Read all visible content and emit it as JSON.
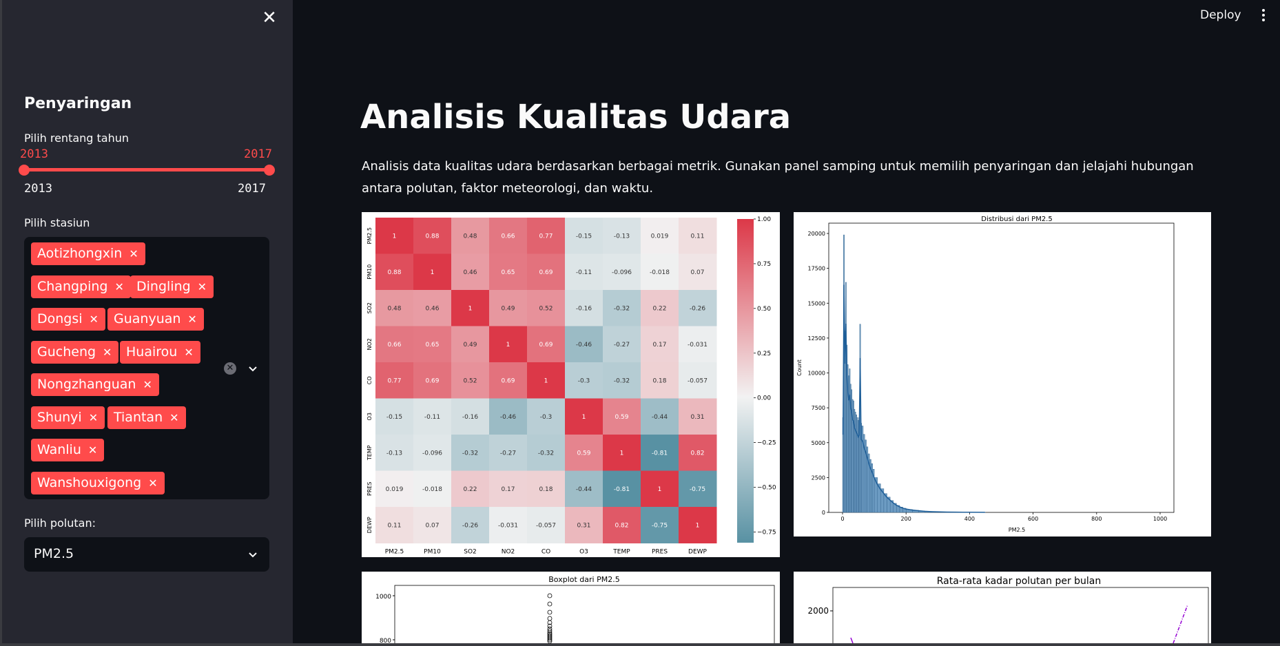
{
  "sidebar": {
    "title": "Penyaringan",
    "year_label": "Pilih rentang tahun",
    "year_start": "2013",
    "year_end": "2017",
    "year_min": "2013",
    "year_max": "2017",
    "station_label": "Pilih stasiun",
    "stations": [
      "Aotizhongxin",
      "Changping",
      "Dingling",
      "Dongsi",
      "Guanyuan",
      "Gucheng",
      "Huairou",
      "Nongzhanguan",
      "Shunyi",
      "Tiantan",
      "Wanliu",
      "Wanshouxigong"
    ],
    "pollutant_label": "Pilih polutan:",
    "pollutant_value": "PM2.5"
  },
  "header": {
    "deploy_label": "Deploy"
  },
  "main": {
    "title": "Analisis Kualitas Udara",
    "description": "Analisis data kualitas udara berdasarkan berbagai metrik. Gunakan panel samping untuk memilih penyaringan dan jelajahi hubungan antara polutan, faktor meteorologi, dan waktu."
  },
  "colors": {
    "accent": "#ff4b4b",
    "background": "#0e1117",
    "sidebar": "#262730"
  },
  "chart_data": [
    {
      "type": "heatmap",
      "labels": [
        "PM2.5",
        "PM10",
        "SO2",
        "NO2",
        "CO",
        "O3",
        "TEMP",
        "PRES",
        "DEWP"
      ],
      "matrix": [
        [
          "1",
          "0.88",
          "0.48",
          "0.66",
          "0.77",
          "-0.15",
          "-0.13",
          "0.019",
          "0.11"
        ],
        [
          "0.88",
          "1",
          "0.46",
          "0.65",
          "0.69",
          "-0.11",
          "-0.096",
          "-0.018",
          "0.07"
        ],
        [
          "0.48",
          "0.46",
          "1",
          "0.49",
          "0.52",
          "-0.16",
          "-0.32",
          "0.22",
          "-0.26"
        ],
        [
          "0.66",
          "0.65",
          "0.49",
          "1",
          "0.69",
          "-0.46",
          "-0.27",
          "0.17",
          "-0.031"
        ],
        [
          "0.77",
          "0.69",
          "0.52",
          "0.69",
          "1",
          "-0.3",
          "-0.32",
          "0.18",
          "-0.057"
        ],
        [
          "-0.15",
          "-0.11",
          "-0.16",
          "-0.46",
          "-0.3",
          "1",
          "0.59",
          "-0.44",
          "0.31"
        ],
        [
          "-0.13",
          "-0.096",
          "-0.32",
          "-0.27",
          "-0.32",
          "0.59",
          "1",
          "-0.81",
          "0.82"
        ],
        [
          "0.019",
          "-0.018",
          "0.22",
          "0.17",
          "0.18",
          "-0.44",
          "-0.81",
          "1",
          "-0.75"
        ],
        [
          "0.11",
          "0.07",
          "-0.26",
          "-0.031",
          "-0.057",
          "0.31",
          "0.82",
          "-0.75",
          "1"
        ]
      ],
      "colorbar_ticks": [
        "1.00",
        "0.75",
        "0.50",
        "0.25",
        "0.00",
        "−0.25",
        "−0.50",
        "−0.75"
      ],
      "vmin": -0.81,
      "vmax": 1
    },
    {
      "type": "bar",
      "title": "Distribusi dari PM2.5",
      "xlabel": "PM2.5",
      "ylabel": "Count",
      "xticks": [
        "0",
        "200",
        "400",
        "600",
        "800",
        "1000"
      ],
      "yticks": [
        "0",
        "2500",
        "5000",
        "7500",
        "10000",
        "12500",
        "15000",
        "17500",
        "20000"
      ],
      "xlim": [
        0,
        1000
      ],
      "ylim": [
        0,
        20000
      ],
      "bins_x": [
        3,
        6,
        9,
        12,
        15,
        18,
        21,
        24,
        27,
        30,
        33,
        36,
        39,
        42,
        45,
        48,
        51,
        54,
        57,
        60,
        65,
        70,
        75,
        80,
        85,
        90,
        95,
        100,
        110,
        120,
        130,
        140,
        150,
        160,
        170,
        180,
        190,
        200,
        220,
        240,
        260,
        280,
        300,
        330,
        360,
        400,
        450
      ],
      "bins_y": [
        6800,
        19900,
        13000,
        16500,
        12000,
        10600,
        9800,
        10300,
        9200,
        8800,
        8100,
        8000,
        7400,
        7200,
        7000,
        6800,
        6600,
        6800,
        13500,
        6400,
        6200,
        5600,
        5200,
        4700,
        4200,
        3800,
        3500,
        3100,
        2500,
        2050,
        1700,
        1350,
        1100,
        850,
        650,
        500,
        380,
        300,
        210,
        150,
        100,
        70,
        50,
        30,
        20,
        12,
        6
      ]
    },
    {
      "type": "box",
      "title": "Boxplot dari PM2.5",
      "yticks": [
        "1000",
        "800"
      ]
    },
    {
      "type": "line",
      "title": "Rata-rata kadar polutan per bulan",
      "yticks": [
        "2000"
      ]
    }
  ]
}
